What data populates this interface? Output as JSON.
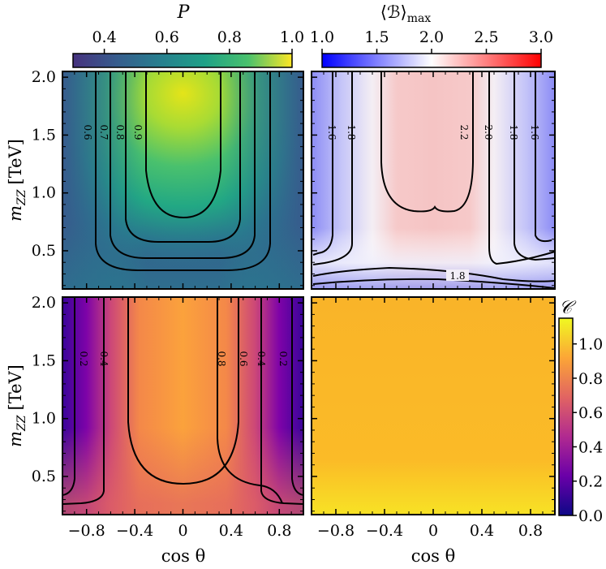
{
  "chart_data": [
    {
      "type": "heatmap",
      "panel": "top-left",
      "colorbar": {
        "title": "P",
        "ticks": [
          "0.4",
          "0.6",
          "0.8",
          "1.0"
        ],
        "range": [
          0.3,
          1.0
        ],
        "colormap": "viridis",
        "placement": "top"
      },
      "xlim": [
        -1,
        1
      ],
      "ylim": [
        0.17,
        2.05
      ],
      "ylabel_main": "m",
      "ylabel_sub": "ZZ",
      "ylabel_unit": "[TeV]",
      "y_ticks": [
        "0.5",
        "1.0",
        "1.5",
        "2.0"
      ],
      "contours": [
        {
          "label": "0.6",
          "bottom": 0.3,
          "x_top": 0.36
        },
        {
          "label": "0.7",
          "bottom": 0.43,
          "x_top": 0.3
        },
        {
          "label": "0.8",
          "bottom": 0.55,
          "x_top": 0.22
        },
        {
          "label": "0.9",
          "bottom": 0.78,
          "x_top": 0.14
        }
      ]
    },
    {
      "type": "heatmap",
      "panel": "top-right",
      "colorbar": {
        "title": "⟨ℬ⟩",
        "title_sub": "max",
        "ticks": [
          "1.0",
          "1.5",
          "2.0",
          "2.5",
          "3.0"
        ],
        "range": [
          1.0,
          3.0
        ],
        "colormap": "bwr",
        "placement": "top"
      },
      "xlim": [
        -1,
        1
      ],
      "ylim": [
        0.17,
        2.05
      ],
      "contours": [
        {
          "label": "1.6",
          "level": 1.6
        },
        {
          "label": "1.8",
          "level": 1.8
        },
        {
          "label": "2.2",
          "level": 2.2
        },
        {
          "label": "2.0",
          "level": 2.0
        },
        {
          "label": "1.8",
          "level": 1.8
        },
        {
          "label": "1.6",
          "level": 1.6
        },
        {
          "label": "1.8",
          "level": 1.8
        }
      ]
    },
    {
      "type": "heatmap",
      "panel": "bottom-left",
      "colormap": "plasma",
      "xlim": [
        -1,
        1
      ],
      "ylim": [
        0.17,
        2.05
      ],
      "xlabel": "cos θ",
      "ylabel_main": "m",
      "ylabel_sub": "ZZ",
      "ylabel_unit": "[TeV]",
      "x_ticks": [
        "−0.8",
        "−0.4",
        "0",
        "0.4",
        "0.8"
      ],
      "y_ticks": [
        "0.5",
        "1.0",
        "1.5",
        "2.0"
      ],
      "contours": [
        {
          "label": "0.2",
          "level": 0.2
        },
        {
          "label": "0.4",
          "level": 0.4
        },
        {
          "label": "0.8",
          "level": 0.8
        },
        {
          "label": "0.6",
          "level": 0.6
        },
        {
          "label": "0.4",
          "level": 0.4
        },
        {
          "label": "0.2",
          "level": 0.2
        }
      ]
    },
    {
      "type": "heatmap",
      "panel": "bottom-right",
      "colormap": "plasma",
      "xlim": [
        -1,
        1
      ],
      "ylim": [
        0.17,
        2.05
      ],
      "xlabel": "cos θ",
      "x_ticks": [
        "−0.8",
        "−0.4",
        "0",
        "0.4",
        "0.8"
      ],
      "colorbar": {
        "title": "𝒞",
        "ticks": [
          "0.0",
          "0.2",
          "0.4",
          "0.6",
          "0.8",
          "1.0"
        ],
        "range": [
          0.0,
          1.15
        ],
        "placement": "right"
      },
      "approx_value": 1.0
    }
  ]
}
